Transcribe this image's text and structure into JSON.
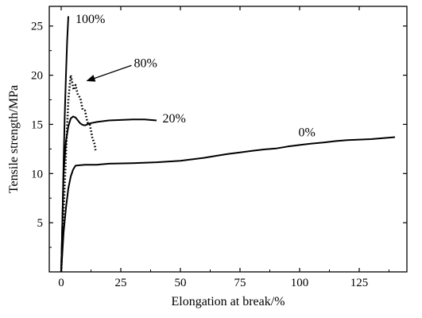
{
  "chart_data": {
    "type": "line",
    "title": "",
    "xlabel": "Elongation at break/%",
    "ylabel": "Tensile strength/MPa",
    "xlim": [
      -5,
      145
    ],
    "ylim": [
      0,
      27
    ],
    "xticks": [
      0,
      25,
      50,
      75,
      100,
      125
    ],
    "yticks": [
      5,
      10,
      15,
      20,
      25
    ],
    "xtick_labels": [
      "0",
      "25",
      "50",
      "75",
      "100",
      "125"
    ],
    "ytick_labels": [
      "5",
      "10",
      "15",
      "20",
      "25"
    ],
    "grid": false,
    "legend": "none",
    "series": [
      {
        "name": "100%",
        "style": "solid",
        "x": [
          0,
          0.5,
          1,
          1.5,
          2,
          2.5,
          3
        ],
        "y": [
          0,
          5,
          11,
          16,
          20,
          23.5,
          26
        ]
      },
      {
        "name": "80%",
        "style": "dotted",
        "x": [
          0,
          1,
          2,
          3,
          4,
          4.6,
          5.2,
          6,
          7,
          8,
          9,
          10,
          11,
          12,
          13,
          14,
          14.5
        ],
        "y": [
          0,
          6,
          12,
          17.5,
          20,
          19.3,
          18.5,
          19,
          18,
          17.7,
          16.5,
          16.4,
          15.2,
          15,
          13.7,
          13,
          12.2
        ]
      },
      {
        "name": "20%",
        "style": "solid",
        "x": [
          0,
          0.5,
          1,
          2,
          3,
          4,
          5,
          6,
          7,
          8,
          9,
          10,
          12,
          15,
          20,
          25,
          30,
          35,
          40
        ],
        "y": [
          0,
          5,
          10,
          13.3,
          14.8,
          15.6,
          15.8,
          15.7,
          15.4,
          15.1,
          14.95,
          14.9,
          15.1,
          15.25,
          15.4,
          15.45,
          15.5,
          15.5,
          15.4
        ]
      },
      {
        "name": "0%",
        "style": "solid",
        "x": [
          0,
          0.5,
          1,
          2,
          3,
          4,
          5,
          6,
          8,
          10,
          15,
          20,
          30,
          40,
          50,
          60,
          65,
          70,
          75,
          80,
          85,
          90,
          95,
          100,
          105,
          110,
          115,
          120,
          125,
          130,
          135,
          140
        ],
        "y": [
          0,
          2,
          4,
          6.5,
          8.5,
          9.7,
          10.4,
          10.8,
          10.85,
          10.9,
          10.9,
          11,
          11.05,
          11.15,
          11.3,
          11.6,
          11.8,
          12,
          12.15,
          12.3,
          12.45,
          12.55,
          12.75,
          12.9,
          13.05,
          13.15,
          13.3,
          13.4,
          13.45,
          13.5,
          13.6,
          13.7
        ]
      }
    ],
    "annotations": [
      {
        "text": "100%",
        "x": 6,
        "y": 25.7
      },
      {
        "text": "80%",
        "x": 30.5,
        "y": 21.2
      },
      {
        "text": "20%",
        "x": 42.5,
        "y": 15.6
      },
      {
        "text": "0%",
        "x": 99.5,
        "y": 14.2
      }
    ],
    "arrow": {
      "from": [
        29.5,
        21.0
      ],
      "to": [
        10.5,
        19.4
      ],
      "target_series": "80%"
    }
  }
}
